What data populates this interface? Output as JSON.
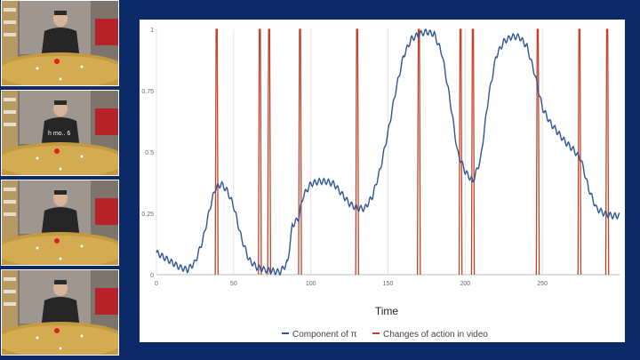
{
  "colors": {
    "background": "#0c2a68",
    "series_blue": "#2f5597",
    "series_red": "#c0442a"
  },
  "video_frames": [
    {
      "name": "frame-1",
      "description_icon": "person-at-table-photo",
      "overlay_text": ""
    },
    {
      "name": "frame-2",
      "description_icon": "person-at-table-photo",
      "overlay_text": "h mo.. 6"
    },
    {
      "name": "frame-3",
      "description_icon": "person-at-table-photo",
      "overlay_text": ""
    },
    {
      "name": "frame-4",
      "description_icon": "person-at-table-photo",
      "overlay_text": ""
    }
  ],
  "chart_data": {
    "type": "line",
    "title": "",
    "xlabel": "Time",
    "ylabel": "",
    "xlim": [
      0,
      300
    ],
    "ylim": [
      0,
      1
    ],
    "x_ticks": [
      0,
      50,
      100,
      150,
      200,
      250
    ],
    "x_tick_labels": [
      "0",
      "50",
      "100",
      "150",
      "200",
      "250"
    ],
    "y_ticks": [
      0,
      0.25,
      0.5,
      0.75,
      1
    ],
    "y_tick_labels": [
      "0",
      "0.25",
      "0.5",
      "0.75",
      "1"
    ],
    "grid": "vertical",
    "legend_placement": "bottom",
    "series": [
      {
        "name": "Component of π",
        "color": "#2f5597",
        "points": [
          [
            0,
            0.09
          ],
          [
            5,
            0.07
          ],
          [
            10,
            0.05
          ],
          [
            15,
            0.03
          ],
          [
            20,
            0.02
          ],
          [
            25,
            0.05
          ],
          [
            30,
            0.14
          ],
          [
            35,
            0.28
          ],
          [
            38,
            0.35
          ],
          [
            42,
            0.37
          ],
          [
            46,
            0.34
          ],
          [
            50,
            0.28
          ],
          [
            55,
            0.15
          ],
          [
            60,
            0.06
          ],
          [
            65,
            0.03
          ],
          [
            70,
            0.02
          ],
          [
            80,
            0.01
          ],
          [
            85,
            0.05
          ],
          [
            88,
            0.2
          ],
          [
            92,
            0.23
          ],
          [
            95,
            0.32
          ],
          [
            100,
            0.37
          ],
          [
            105,
            0.38
          ],
          [
            110,
            0.38
          ],
          [
            115,
            0.37
          ],
          [
            120,
            0.33
          ],
          [
            125,
            0.29
          ],
          [
            130,
            0.27
          ],
          [
            135,
            0.27
          ],
          [
            140,
            0.32
          ],
          [
            145,
            0.43
          ],
          [
            150,
            0.58
          ],
          [
            155,
            0.75
          ],
          [
            160,
            0.89
          ],
          [
            165,
            0.96
          ],
          [
            170,
            0.98
          ],
          [
            175,
            0.99
          ],
          [
            180,
            0.98
          ],
          [
            185,
            0.9
          ],
          [
            190,
            0.72
          ],
          [
            195,
            0.5
          ],
          [
            200,
            0.42
          ],
          [
            205,
            0.38
          ],
          [
            210,
            0.47
          ],
          [
            215,
            0.72
          ],
          [
            220,
            0.89
          ],
          [
            225,
            0.95
          ],
          [
            230,
            0.97
          ],
          [
            235,
            0.97
          ],
          [
            240,
            0.93
          ],
          [
            245,
            0.82
          ],
          [
            250,
            0.68
          ],
          [
            255,
            0.62
          ],
          [
            260,
            0.58
          ],
          [
            265,
            0.54
          ],
          [
            270,
            0.51
          ],
          [
            275,
            0.47
          ],
          [
            280,
            0.35
          ],
          [
            285,
            0.27
          ],
          [
            290,
            0.25
          ],
          [
            295,
            0.24
          ],
          [
            300,
            0.24
          ]
        ]
      },
      {
        "name": "Changes of action in video",
        "color": "#c0442a",
        "spikes_at": [
          39,
          67,
          73,
          93,
          130,
          170,
          197,
          205,
          247,
          274,
          292
        ]
      }
    ]
  }
}
